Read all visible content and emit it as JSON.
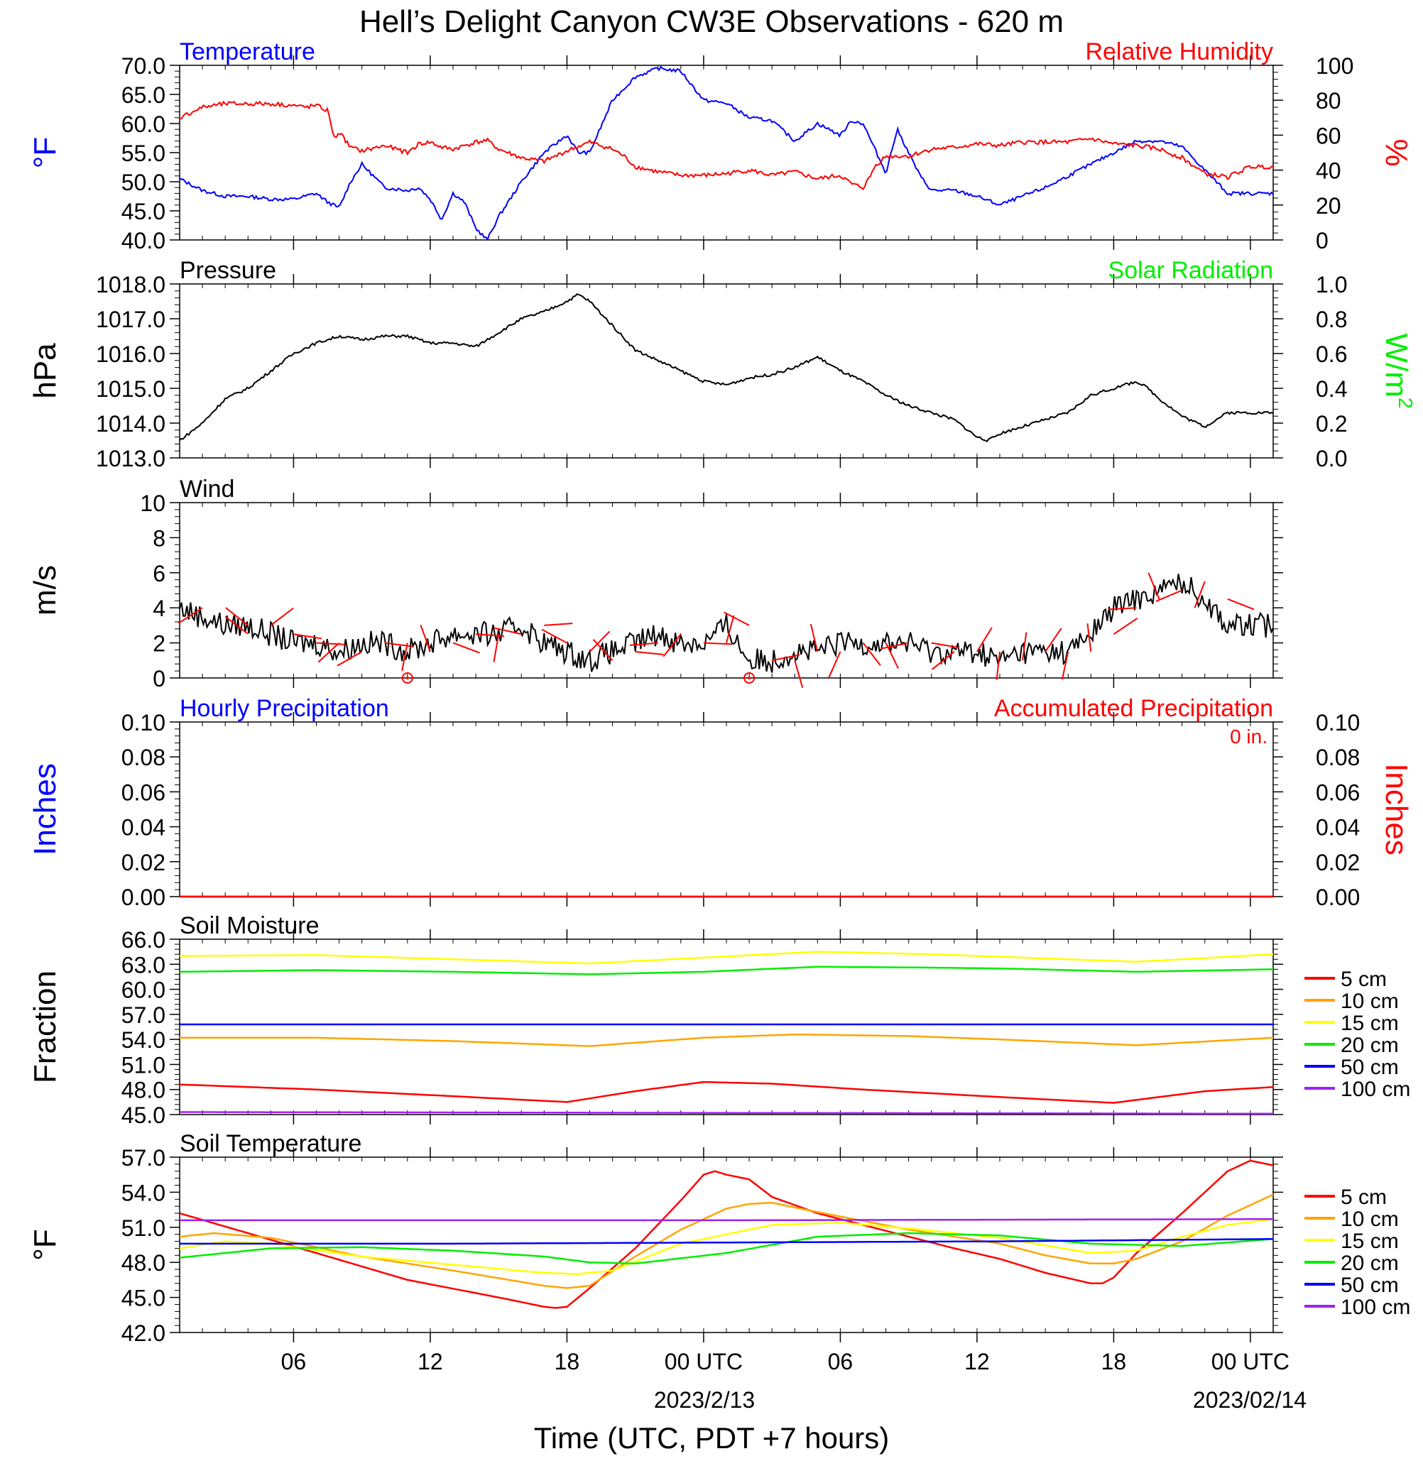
{
  "title": "Hell’s Delight Canyon CW3E Observations - 620 m",
  "xlabel": "Time (UTC, PDT +7 hours)",
  "colors": {
    "blue": "#0000ff",
    "red": "#ff0000",
    "green": "#00ee00",
    "black": "#000000",
    "orange": "#ffa500",
    "yellow": "#ffff00",
    "purple": "#a020f0"
  },
  "x_axis": {
    "range_hours": [
      0,
      48
    ],
    "tick_labels": [
      {
        "hour": 5,
        "label": "06"
      },
      {
        "hour": 11,
        "label": "12"
      },
      {
        "hour": 17,
        "label": "18"
      },
      {
        "hour": 23,
        "label": "00 UTC"
      },
      {
        "hour": 29,
        "label": "06"
      },
      {
        "hour": 35,
        "label": "12"
      },
      {
        "hour": 41,
        "label": "18"
      },
      {
        "hour": 47,
        "label": "00 UTC"
      }
    ],
    "date_labels": [
      {
        "hour": 23,
        "label": "2023/2/13"
      },
      {
        "hour": 47,
        "label": "2023/02/14"
      }
    ]
  },
  "chart_data": [
    {
      "id": "temperature_rh",
      "type": "line",
      "title_left": "Temperature",
      "title_right": "Relative Humidity",
      "ylabel_left": "°F",
      "ylabel_right": "%",
      "ylim_left": [
        40,
        70
      ],
      "ylim_right": [
        0,
        100
      ],
      "yticks_left": [
        "40.0",
        "45.0",
        "50.0",
        "55.0",
        "60.0",
        "65.0",
        "70.0"
      ],
      "yticks_right": [
        "0",
        "20",
        "40",
        "60",
        "80",
        "100"
      ],
      "series": [
        {
          "name": "Temperature",
          "axis": "left",
          "color": "#0000ff",
          "x": [
            0,
            1,
            2,
            3,
            4,
            5,
            6,
            6.5,
            7,
            7.5,
            8,
            9,
            10,
            10.5,
            11,
            11.5,
            12,
            12.5,
            13,
            13.5,
            14,
            15,
            16,
            17,
            17.5,
            18,
            19,
            19.5,
            20,
            21,
            22,
            23,
            24,
            25,
            26,
            27,
            28,
            29,
            29.5,
            30,
            31,
            31.5,
            32,
            32.5,
            33,
            34,
            35,
            36,
            37,
            38,
            39,
            40,
            41,
            42,
            43,
            44,
            45,
            46,
            47,
            48
          ],
          "y": [
            50.5,
            48.5,
            47.5,
            47.5,
            47,
            47,
            48,
            46.5,
            45.5,
            50,
            53,
            49,
            48.5,
            49,
            47,
            43.5,
            48,
            46.5,
            42,
            40,
            44,
            50,
            55,
            58,
            55,
            55,
            64,
            66,
            68,
            69.5,
            69,
            64,
            63.5,
            61,
            60.5,
            57,
            60,
            58,
            60.5,
            60,
            51.5,
            59,
            55,
            51,
            48.5,
            48.5,
            47.5,
            46,
            47.5,
            49,
            51,
            53,
            55,
            57,
            57,
            56,
            52,
            48,
            48,
            48
          ]
        },
        {
          "name": "Relative Humidity",
          "axis": "right",
          "color": "#ff0000",
          "x": [
            0,
            1,
            2,
            3,
            4,
            5,
            5.5,
            6,
            6.5,
            6.8,
            7,
            7.5,
            8,
            9,
            10,
            10.5,
            11,
            11.5,
            12,
            13,
            13.5,
            14,
            15,
            16,
            17,
            18,
            19,
            19.5,
            20,
            21,
            22,
            23,
            24,
            25,
            26,
            27,
            28,
            29,
            29.5,
            30,
            30.3,
            30.5,
            31,
            32,
            33,
            34,
            35,
            36,
            37,
            38,
            39,
            40,
            41,
            42,
            43,
            44,
            45,
            46,
            47,
            48
          ],
          "y": [
            70,
            76,
            78,
            78,
            78,
            77,
            76,
            77,
            74,
            58,
            62,
            53,
            51,
            54,
            50,
            55,
            56,
            53,
            52,
            56,
            57,
            52,
            47,
            45,
            51,
            56,
            52,
            48,
            42,
            39,
            37,
            37,
            38,
            40,
            37,
            39,
            35,
            37,
            32,
            30,
            36,
            42,
            48,
            48,
            52,
            53,
            55,
            54,
            56,
            56,
            56,
            58,
            55,
            54,
            52,
            47,
            38,
            36,
            42,
            42
          ]
        }
      ]
    },
    {
      "id": "pressure_solar",
      "type": "line",
      "title_left": "Pressure",
      "title_right": "Solar Radiation",
      "ylabel_left": "hPa",
      "ylabel_right": "W/m",
      "ylabel_right_sup": "2",
      "ylim_left": [
        1013,
        1018
      ],
      "ylim_right": [
        0,
        1
      ],
      "yticks_left": [
        "1013.0",
        "1014.0",
        "1015.0",
        "1016.0",
        "1017.0",
        "1018.0"
      ],
      "yticks_right": [
        "0.0",
        "0.2",
        "0.4",
        "0.6",
        "0.8",
        "1.0"
      ],
      "series": [
        {
          "name": "Pressure",
          "axis": "left",
          "color": "#000000",
          "x": [
            0,
            1,
            2,
            3,
            4,
            5,
            6,
            7,
            8,
            9,
            10,
            11,
            12,
            13,
            14,
            15,
            16,
            17,
            17.5,
            18,
            19,
            20,
            21,
            22,
            23,
            24,
            25,
            26,
            27,
            28,
            29,
            30,
            31,
            32,
            33,
            34,
            35,
            35.5,
            36,
            37,
            38,
            39,
            40,
            41,
            42,
            42.5,
            43,
            44,
            45,
            46,
            47,
            48
          ],
          "y": [
            1013.5,
            1014,
            1014.7,
            1015,
            1015.5,
            1016,
            1016.3,
            1016.5,
            1016.4,
            1016.5,
            1016.5,
            1016.3,
            1016.3,
            1016.2,
            1016.6,
            1017,
            1017.2,
            1017.5,
            1017.7,
            1017.5,
            1016.8,
            1016.1,
            1015.8,
            1015.5,
            1015.2,
            1015.1,
            1015.3,
            1015.4,
            1015.6,
            1015.9,
            1015.5,
            1015.2,
            1014.8,
            1014.5,
            1014.3,
            1014.1,
            1013.6,
            1013.5,
            1013.7,
            1013.9,
            1014.1,
            1014.3,
            1014.8,
            1015,
            1015.2,
            1015,
            1014.7,
            1014.2,
            1013.9,
            1014.3,
            1014.3,
            1014.3
          ]
        }
      ]
    },
    {
      "id": "wind",
      "type": "line",
      "title_left": "Wind",
      "ylabel_left": "m/s",
      "ylim_left": [
        0,
        10
      ],
      "yticks_left": [
        "0",
        "2",
        "4",
        "6",
        "8",
        "10"
      ],
      "series": [
        {
          "name": "Wind",
          "axis": "left",
          "color": "#000000",
          "x": [
            0,
            1,
            2,
            3,
            4,
            5,
            6,
            7,
            8,
            9,
            10,
            11,
            12,
            13,
            14,
            15,
            16,
            17,
            18,
            19,
            20,
            21,
            22,
            23,
            24,
            25,
            26,
            27,
            28,
            29,
            30,
            31,
            32,
            33,
            34,
            35,
            36,
            37,
            38,
            39,
            40,
            41,
            42,
            43,
            44,
            45,
            46,
            47,
            48
          ],
          "y": [
            4,
            3.5,
            3,
            3,
            2.5,
            2,
            2,
            1.5,
            2,
            2,
            1.5,
            2,
            2.5,
            2.5,
            2.5,
            3,
            2,
            1.5,
            1,
            1.5,
            2,
            2.5,
            2,
            2,
            3,
            1,
            1,
            1.5,
            1.5,
            2,
            2,
            2,
            2,
            1.5,
            1.5,
            1.5,
            1,
            1.5,
            1.5,
            1.5,
            2.5,
            4,
            4.5,
            5,
            5.5,
            4.5,
            3,
            3,
            3
          ]
        }
      ],
      "calm_markers_hours": [
        10,
        25
      ]
    },
    {
      "id": "precipitation",
      "type": "line",
      "title_left": "Hourly Precipitation",
      "title_right": "Accumulated Precipitation",
      "annotation": "0 in.",
      "ylabel_left": "Inches",
      "ylabel_right": "Inches",
      "ylim_left": [
        0,
        0.1
      ],
      "ylim_right": [
        0,
        0.1
      ],
      "yticks_left": [
        "0.00",
        "0.02",
        "0.04",
        "0.06",
        "0.08",
        "0.10"
      ],
      "yticks_right": [
        "0.00",
        "0.02",
        "0.04",
        "0.06",
        "0.08",
        "0.10"
      ],
      "series": [
        {
          "name": "Hourly Precipitation",
          "axis": "left",
          "color": "#0000ff",
          "x": [
            0,
            48
          ],
          "y": [
            0,
            0
          ]
        },
        {
          "name": "Accumulated Precipitation",
          "axis": "right",
          "color": "#ff0000",
          "x": [
            0,
            48
          ],
          "y": [
            0,
            0
          ]
        }
      ]
    },
    {
      "id": "soil_moisture",
      "type": "line",
      "title_left": "Soil Moisture",
      "ylabel_left": "Fraction",
      "ylim_left": [
        45,
        66
      ],
      "yticks_left": [
        "45.0",
        "48.0",
        "51.0",
        "54.0",
        "57.0",
        "60.0",
        "63.0",
        "66.0"
      ],
      "series": [
        {
          "name": "5 cm",
          "color": "#ff0000",
          "x": [
            0,
            6,
            12,
            17,
            20,
            23,
            26,
            30,
            36,
            41,
            45,
            48
          ],
          "y": [
            48.6,
            48,
            47.2,
            46.5,
            47.8,
            48.9,
            48.7,
            48,
            47.1,
            46.4,
            47.8,
            48.3
          ]
        },
        {
          "name": "10 cm",
          "color": "#ffa500",
          "x": [
            0,
            6,
            12,
            18,
            23,
            27,
            32,
            36,
            42,
            48
          ],
          "y": [
            54.2,
            54.2,
            53.8,
            53.2,
            54.2,
            54.6,
            54.4,
            54,
            53.3,
            54.2
          ]
        },
        {
          "name": "15 cm",
          "color": "#ffff00",
          "x": [
            0,
            6,
            12,
            18,
            23,
            28,
            33,
            36,
            42,
            48
          ],
          "y": [
            64,
            64.1,
            63.6,
            63.1,
            63.8,
            64.5,
            64.2,
            63.9,
            63.3,
            64.2
          ]
        },
        {
          "name": "20 cm",
          "color": "#00ee00",
          "x": [
            0,
            6,
            12,
            18,
            23,
            28,
            33,
            36,
            42,
            48
          ],
          "y": [
            62.1,
            62.3,
            62.1,
            61.8,
            62.1,
            62.7,
            62.6,
            62.5,
            62.1,
            62.4
          ]
        },
        {
          "name": "50 cm",
          "color": "#0000ff",
          "x": [
            0,
            48
          ],
          "y": [
            55.8,
            55.8
          ]
        },
        {
          "name": "100 cm",
          "color": "#a020f0",
          "x": [
            0,
            24,
            48
          ],
          "y": [
            45.3,
            45.2,
            45.1
          ]
        }
      ],
      "legend_position": "right"
    },
    {
      "id": "soil_temperature",
      "type": "line",
      "title_left": "Soil Temperature",
      "ylabel_left": "°F",
      "ylim_left": [
        42,
        57
      ],
      "yticks_left": [
        "42.0",
        "45.0",
        "48.0",
        "51.0",
        "54.0",
        "57.0"
      ],
      "series": [
        {
          "name": "5 cm",
          "color": "#ff0000",
          "x": [
            0,
            3,
            6,
            10,
            14,
            16,
            16.5,
            17,
            18,
            20,
            22,
            23,
            23.5,
            24,
            25,
            26,
            28,
            30,
            32,
            34,
            36,
            38,
            40,
            40.5,
            41,
            42,
            44,
            46,
            47,
            48
          ],
          "y": [
            52.2,
            50.5,
            48.8,
            46.5,
            45,
            44.2,
            44.1,
            44.2,
            45.8,
            49.2,
            53.3,
            55.5,
            55.8,
            55.5,
            55.1,
            53.6,
            52.2,
            51.2,
            50.2,
            49.2,
            48.3,
            47.1,
            46.2,
            46.2,
            46.7,
            48.8,
            52.2,
            55.8,
            56.7,
            56.3
          ]
        },
        {
          "name": "10 cm",
          "color": "#ffa500",
          "x": [
            0,
            1.5,
            4,
            8,
            12,
            16,
            17,
            18,
            20,
            22,
            24,
            25,
            26,
            28,
            32,
            36,
            38,
            40,
            41,
            42,
            44,
            46,
            48
          ],
          "y": [
            50.2,
            50.5,
            50.1,
            48.5,
            47.3,
            46,
            45.8,
            46,
            48.5,
            50.8,
            52.6,
            53,
            53.1,
            52.3,
            50.8,
            49.6,
            48.6,
            47.9,
            47.9,
            48.3,
            49.8,
            52,
            53.8
          ]
        },
        {
          "name": "15 cm",
          "color": "#ffff00",
          "x": [
            0,
            2,
            4,
            8,
            12,
            16,
            17.5,
            19,
            22,
            26,
            29,
            32,
            36,
            40,
            42,
            44,
            46,
            48
          ],
          "y": [
            49.2,
            49.8,
            49.6,
            48.5,
            47.8,
            47.1,
            47,
            47.3,
            49.6,
            51.2,
            51.4,
            50.9,
            50.1,
            48.8,
            49,
            50.2,
            51.2,
            51.7
          ]
        },
        {
          "name": "20 cm",
          "color": "#00ee00",
          "x": [
            0,
            4,
            8,
            12,
            16,
            18,
            20,
            24,
            28,
            32,
            36,
            40,
            44,
            48
          ],
          "y": [
            48.4,
            49.2,
            49.3,
            49,
            48.5,
            48,
            47.9,
            48.8,
            50.2,
            50.5,
            50.3,
            49.6,
            49.4,
            50
          ]
        },
        {
          "name": "50 cm",
          "color": "#0000ff",
          "x": [
            0,
            12,
            24,
            36,
            48
          ],
          "y": [
            49.6,
            49.6,
            49.7,
            49.8,
            50
          ]
        },
        {
          "name": "100 cm",
          "color": "#a020f0",
          "x": [
            0,
            24,
            48
          ],
          "y": [
            51.6,
            51.6,
            51.7
          ]
        }
      ],
      "legend_position": "right"
    }
  ]
}
